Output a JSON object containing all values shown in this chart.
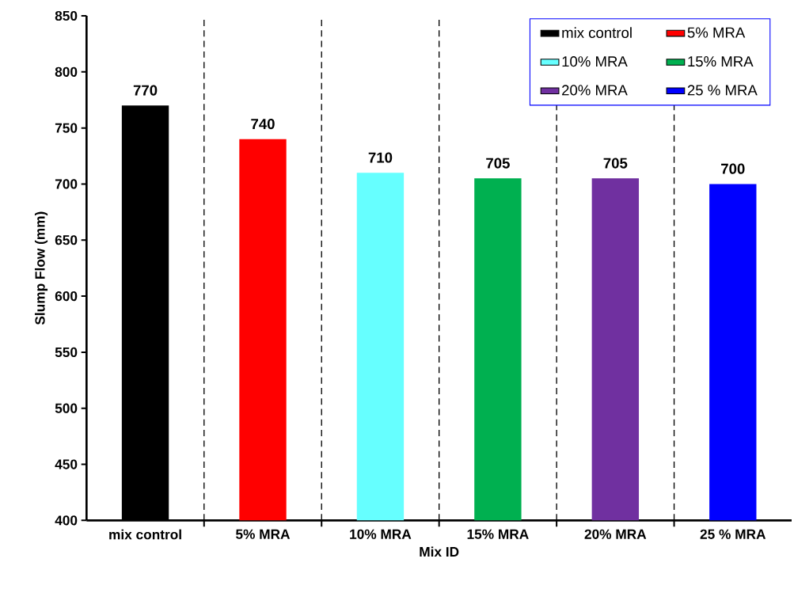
{
  "chart_data": {
    "type": "bar",
    "xlabel": "Mix ID",
    "ylabel": "Slump Flow (mm)",
    "categories": [
      "mix control",
      "5% MRA",
      "10% MRA",
      "15% MRA",
      "20% MRA",
      "25 % MRA"
    ],
    "series": [
      {
        "name": "mix control",
        "color": "#000000",
        "values": [
          770,
          null,
          null,
          null,
          null,
          null
        ]
      },
      {
        "name": "5% MRA",
        "color": "#ff0000",
        "values": [
          null,
          740,
          null,
          null,
          null,
          null
        ]
      },
      {
        "name": "10% MRA",
        "color": "#66ffff",
        "values": [
          null,
          null,
          710,
          null,
          null,
          null
        ]
      },
      {
        "name": "15% MRA",
        "color": "#00b050",
        "values": [
          null,
          null,
          null,
          705,
          null,
          null
        ]
      },
      {
        "name": "20% MRA",
        "color": "#7030a0",
        "values": [
          null,
          null,
          null,
          null,
          705,
          null
        ]
      },
      {
        "name": "25 % MRA",
        "color": "#0000ff",
        "values": [
          null,
          null,
          null,
          null,
          null,
          700
        ]
      }
    ],
    "ylim": [
      400,
      850
    ],
    "yticks": [
      400,
      450,
      500,
      550,
      600,
      650,
      700,
      750,
      800,
      850
    ],
    "grid": "x",
    "legend": "top right",
    "data_labels": true
  }
}
